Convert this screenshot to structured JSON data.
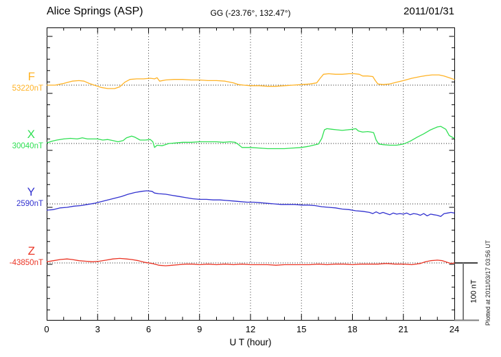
{
  "header": {
    "title": "Alice Springs (ASP)",
    "subtitle": "GG (-23.76°, 132.47°)",
    "date": "2011/01/31"
  },
  "side": {
    "scale_bar_label": "100 nT",
    "plotted_at": "Plotted at 2011/03/17 03:56 UT"
  },
  "x_axis": {
    "label": "U T (hour)",
    "ticks": [
      0,
      3,
      6,
      9,
      12,
      15,
      18,
      21,
      24
    ]
  },
  "chart_data": {
    "type": "line",
    "title": "Alice Springs (ASP)",
    "subtitle": "GG (-23.76°, 132.47°)",
    "date": "2011/01/31",
    "xlabel": "U T (hour)",
    "xlim": [
      0,
      24
    ],
    "x_ticks": [
      0,
      3,
      6,
      9,
      12,
      15,
      18,
      21,
      24
    ],
    "grid": "vertical dotted gridlines every 3 h; dotted horizontal baseline per trace",
    "unit": "nT",
    "scale_bar_nT": 100,
    "scale_bar_label": "100 nT",
    "note": "point values are offsets in nT from each trace baseline value",
    "series": [
      {
        "name": "F",
        "baseline_value_label": "53220nT",
        "color": "#FFB224",
        "points": [
          [
            0,
            0
          ],
          [
            0.5,
            0
          ],
          [
            1,
            3
          ],
          [
            1.5,
            7
          ],
          [
            1.9,
            8
          ],
          [
            2.2,
            7
          ],
          [
            2.5,
            3
          ],
          [
            2.8,
            0
          ],
          [
            3.2,
            -4
          ],
          [
            3.6,
            -6
          ],
          [
            4,
            -6
          ],
          [
            4.3,
            -3
          ],
          [
            4.6,
            5
          ],
          [
            4.9,
            10
          ],
          [
            5.3,
            11
          ],
          [
            5.7,
            11
          ],
          [
            6.1,
            12
          ],
          [
            6.35,
            11
          ],
          [
            6.5,
            13
          ],
          [
            6.65,
            7
          ],
          [
            7,
            9
          ],
          [
            7.5,
            10
          ],
          [
            8,
            10
          ],
          [
            8.5,
            9
          ],
          [
            9,
            9
          ],
          [
            9.5,
            8
          ],
          [
            10,
            8
          ],
          [
            10.5,
            7
          ],
          [
            11,
            4
          ],
          [
            11.3,
            1
          ],
          [
            11.6,
            0
          ],
          [
            12,
            -1
          ],
          [
            12.5,
            -1
          ],
          [
            13,
            -2
          ],
          [
            13.5,
            -2
          ],
          [
            14,
            -1
          ],
          [
            14.5,
            0
          ],
          [
            15,
            1
          ],
          [
            15.5,
            2
          ],
          [
            15.9,
            4
          ],
          [
            16.1,
            12
          ],
          [
            16.3,
            19
          ],
          [
            16.6,
            20
          ],
          [
            17,
            19
          ],
          [
            17.4,
            19
          ],
          [
            17.8,
            20
          ],
          [
            18.1,
            20
          ],
          [
            18.4,
            19
          ],
          [
            18.6,
            16
          ],
          [
            18.9,
            16
          ],
          [
            19.2,
            15
          ],
          [
            19.35,
            8
          ],
          [
            19.5,
            2
          ],
          [
            19.8,
            1
          ],
          [
            20.2,
            2
          ],
          [
            20.6,
            5
          ],
          [
            21,
            8
          ],
          [
            21.5,
            12
          ],
          [
            22,
            15
          ],
          [
            22.4,
            17
          ],
          [
            22.7,
            18
          ],
          [
            23.1,
            18
          ],
          [
            23.4,
            16
          ],
          [
            23.7,
            13
          ],
          [
            24,
            10
          ]
        ]
      },
      {
        "name": "X",
        "baseline_value_label": "30040nT",
        "color": "#2EE052",
        "points": [
          [
            0,
            1
          ],
          [
            0.3,
            4
          ],
          [
            0.6,
            6
          ],
          [
            1,
            8
          ],
          [
            1.4,
            9
          ],
          [
            1.8,
            8
          ],
          [
            2.1,
            10
          ],
          [
            2.4,
            8
          ],
          [
            2.7,
            8
          ],
          [
            3,
            8
          ],
          [
            3.3,
            6
          ],
          [
            3.6,
            7
          ],
          [
            3.9,
            5
          ],
          [
            4.2,
            3
          ],
          [
            4.5,
            5
          ],
          [
            4.7,
            10
          ],
          [
            5,
            13
          ],
          [
            5.2,
            11
          ],
          [
            5.5,
            6
          ],
          [
            5.8,
            6
          ],
          [
            6.1,
            7
          ],
          [
            6.25,
            3
          ],
          [
            6.35,
            -7
          ],
          [
            6.5,
            -3
          ],
          [
            6.8,
            -4
          ],
          [
            7.2,
            0
          ],
          [
            7.6,
            1
          ],
          [
            8,
            2
          ],
          [
            8.5,
            2
          ],
          [
            9,
            3
          ],
          [
            9.5,
            3
          ],
          [
            10,
            3
          ],
          [
            10.4,
            2
          ],
          [
            10.8,
            3
          ],
          [
            11.1,
            2
          ],
          [
            11.3,
            -2
          ],
          [
            11.5,
            -7
          ],
          [
            12,
            -7
          ],
          [
            12.5,
            -8
          ],
          [
            13,
            -9
          ],
          [
            13.5,
            -9
          ],
          [
            14,
            -9
          ],
          [
            14.5,
            -8
          ],
          [
            15,
            -7
          ],
          [
            15.4,
            -5
          ],
          [
            15.7,
            -3
          ],
          [
            16,
            -1
          ],
          [
            16.2,
            9
          ],
          [
            16.35,
            24
          ],
          [
            16.5,
            26
          ],
          [
            16.8,
            25
          ],
          [
            17.1,
            24
          ],
          [
            17.4,
            23
          ],
          [
            17.7,
            24
          ],
          [
            18,
            25
          ],
          [
            18.2,
            26
          ],
          [
            18.35,
            22
          ],
          [
            18.6,
            20
          ],
          [
            18.9,
            21
          ],
          [
            19.1,
            20
          ],
          [
            19.25,
            19
          ],
          [
            19.4,
            6
          ],
          [
            19.55,
            -1
          ],
          [
            19.8,
            -2
          ],
          [
            20.2,
            -3
          ],
          [
            20.6,
            -3
          ],
          [
            21,
            -1
          ],
          [
            21.4,
            4
          ],
          [
            21.8,
            11
          ],
          [
            22.2,
            17
          ],
          [
            22.6,
            24
          ],
          [
            23,
            29
          ],
          [
            23.2,
            30
          ],
          [
            23.5,
            25
          ],
          [
            23.7,
            14
          ],
          [
            24,
            9
          ]
        ]
      },
      {
        "name": "Y",
        "baseline_value_label": "2590nT",
        "color": "#3030CF",
        "points": [
          [
            0,
            -11
          ],
          [
            0.4,
            -10
          ],
          [
            0.8,
            -7
          ],
          [
            1.2,
            -6
          ],
          [
            1.6,
            -4
          ],
          [
            2,
            -3
          ],
          [
            2.4,
            -1
          ],
          [
            2.8,
            1
          ],
          [
            3.2,
            4
          ],
          [
            3.6,
            7
          ],
          [
            4,
            10
          ],
          [
            4.4,
            13
          ],
          [
            4.8,
            17
          ],
          [
            5.2,
            20
          ],
          [
            5.6,
            22
          ],
          [
            5.9,
            23
          ],
          [
            6.2,
            22
          ],
          [
            6.35,
            19
          ],
          [
            6.6,
            18
          ],
          [
            7,
            17
          ],
          [
            7.4,
            15
          ],
          [
            7.8,
            13
          ],
          [
            8.2,
            11
          ],
          [
            8.6,
            9
          ],
          [
            9,
            8
          ],
          [
            9.4,
            8
          ],
          [
            9.8,
            7
          ],
          [
            10.2,
            7
          ],
          [
            10.6,
            6
          ],
          [
            11,
            5
          ],
          [
            11.4,
            4
          ],
          [
            11.8,
            3
          ],
          [
            12.2,
            3
          ],
          [
            12.6,
            2
          ],
          [
            13,
            1
          ],
          [
            13.4,
            0
          ],
          [
            13.8,
            -1
          ],
          [
            14.2,
            -1
          ],
          [
            14.6,
            -1
          ],
          [
            15,
            -2
          ],
          [
            15.4,
            -2
          ],
          [
            15.8,
            -3
          ],
          [
            16.2,
            -5
          ],
          [
            16.6,
            -6
          ],
          [
            17,
            -7
          ],
          [
            17.4,
            -9
          ],
          [
            17.8,
            -10
          ],
          [
            18.2,
            -12
          ],
          [
            18.6,
            -13
          ],
          [
            19,
            -15
          ],
          [
            19.2,
            -17
          ],
          [
            19.4,
            -14
          ],
          [
            19.6,
            -17
          ],
          [
            19.8,
            -15
          ],
          [
            20,
            -17
          ],
          [
            20.2,
            -19
          ],
          [
            20.4,
            -16
          ],
          [
            20.6,
            -18
          ],
          [
            20.8,
            -17
          ],
          [
            21,
            -18
          ],
          [
            21.2,
            -16
          ],
          [
            21.4,
            -19
          ],
          [
            21.6,
            -17
          ],
          [
            21.8,
            -18
          ],
          [
            22,
            -20
          ],
          [
            22.2,
            -17
          ],
          [
            22.4,
            -21
          ],
          [
            22.6,
            -18
          ],
          [
            22.8,
            -19
          ],
          [
            23,
            -20
          ],
          [
            23.2,
            -22
          ],
          [
            23.4,
            -17
          ],
          [
            23.6,
            -16
          ],
          [
            23.8,
            -15
          ],
          [
            24,
            -16
          ]
        ]
      },
      {
        "name": "Z",
        "baseline_value_label": "-43850nT",
        "color": "#EA3323",
        "points": [
          [
            0,
            2
          ],
          [
            0.4,
            4
          ],
          [
            0.8,
            6
          ],
          [
            1.2,
            7
          ],
          [
            1.5,
            6
          ],
          [
            1.9,
            4
          ],
          [
            2.3,
            3
          ],
          [
            2.7,
            2
          ],
          [
            3.1,
            3
          ],
          [
            3.5,
            5
          ],
          [
            3.9,
            7
          ],
          [
            4.3,
            8
          ],
          [
            4.7,
            7
          ],
          [
            5,
            6
          ],
          [
            5.4,
            4
          ],
          [
            5.8,
            1
          ],
          [
            6.2,
            -1
          ],
          [
            6.6,
            -4
          ],
          [
            7,
            -5
          ],
          [
            7.4,
            -4
          ],
          [
            7.8,
            -3
          ],
          [
            8.2,
            -2
          ],
          [
            8.6,
            -2
          ],
          [
            9,
            -3
          ],
          [
            9.5,
            -2
          ],
          [
            10,
            -3
          ],
          [
            10.5,
            -2
          ],
          [
            11,
            -3
          ],
          [
            11.5,
            -2
          ],
          [
            12,
            -3
          ],
          [
            12.5,
            -3
          ],
          [
            13,
            -3
          ],
          [
            13.5,
            -4
          ],
          [
            14,
            -3
          ],
          [
            14.5,
            -3
          ],
          [
            15,
            -3
          ],
          [
            15.5,
            -3
          ],
          [
            16,
            -2
          ],
          [
            16.5,
            -3
          ],
          [
            17,
            -2
          ],
          [
            17.5,
            -2
          ],
          [
            18,
            -3
          ],
          [
            18.5,
            -2
          ],
          [
            19,
            -2
          ],
          [
            19.5,
            -2
          ],
          [
            20,
            -1
          ],
          [
            20.5,
            -2
          ],
          [
            21,
            -2
          ],
          [
            21.5,
            -3
          ],
          [
            22,
            -1
          ],
          [
            22.3,
            2
          ],
          [
            22.6,
            4
          ],
          [
            23,
            5
          ],
          [
            23.3,
            4
          ],
          [
            23.6,
            1
          ],
          [
            23.8,
            -1
          ],
          [
            24,
            0
          ]
        ]
      }
    ]
  }
}
